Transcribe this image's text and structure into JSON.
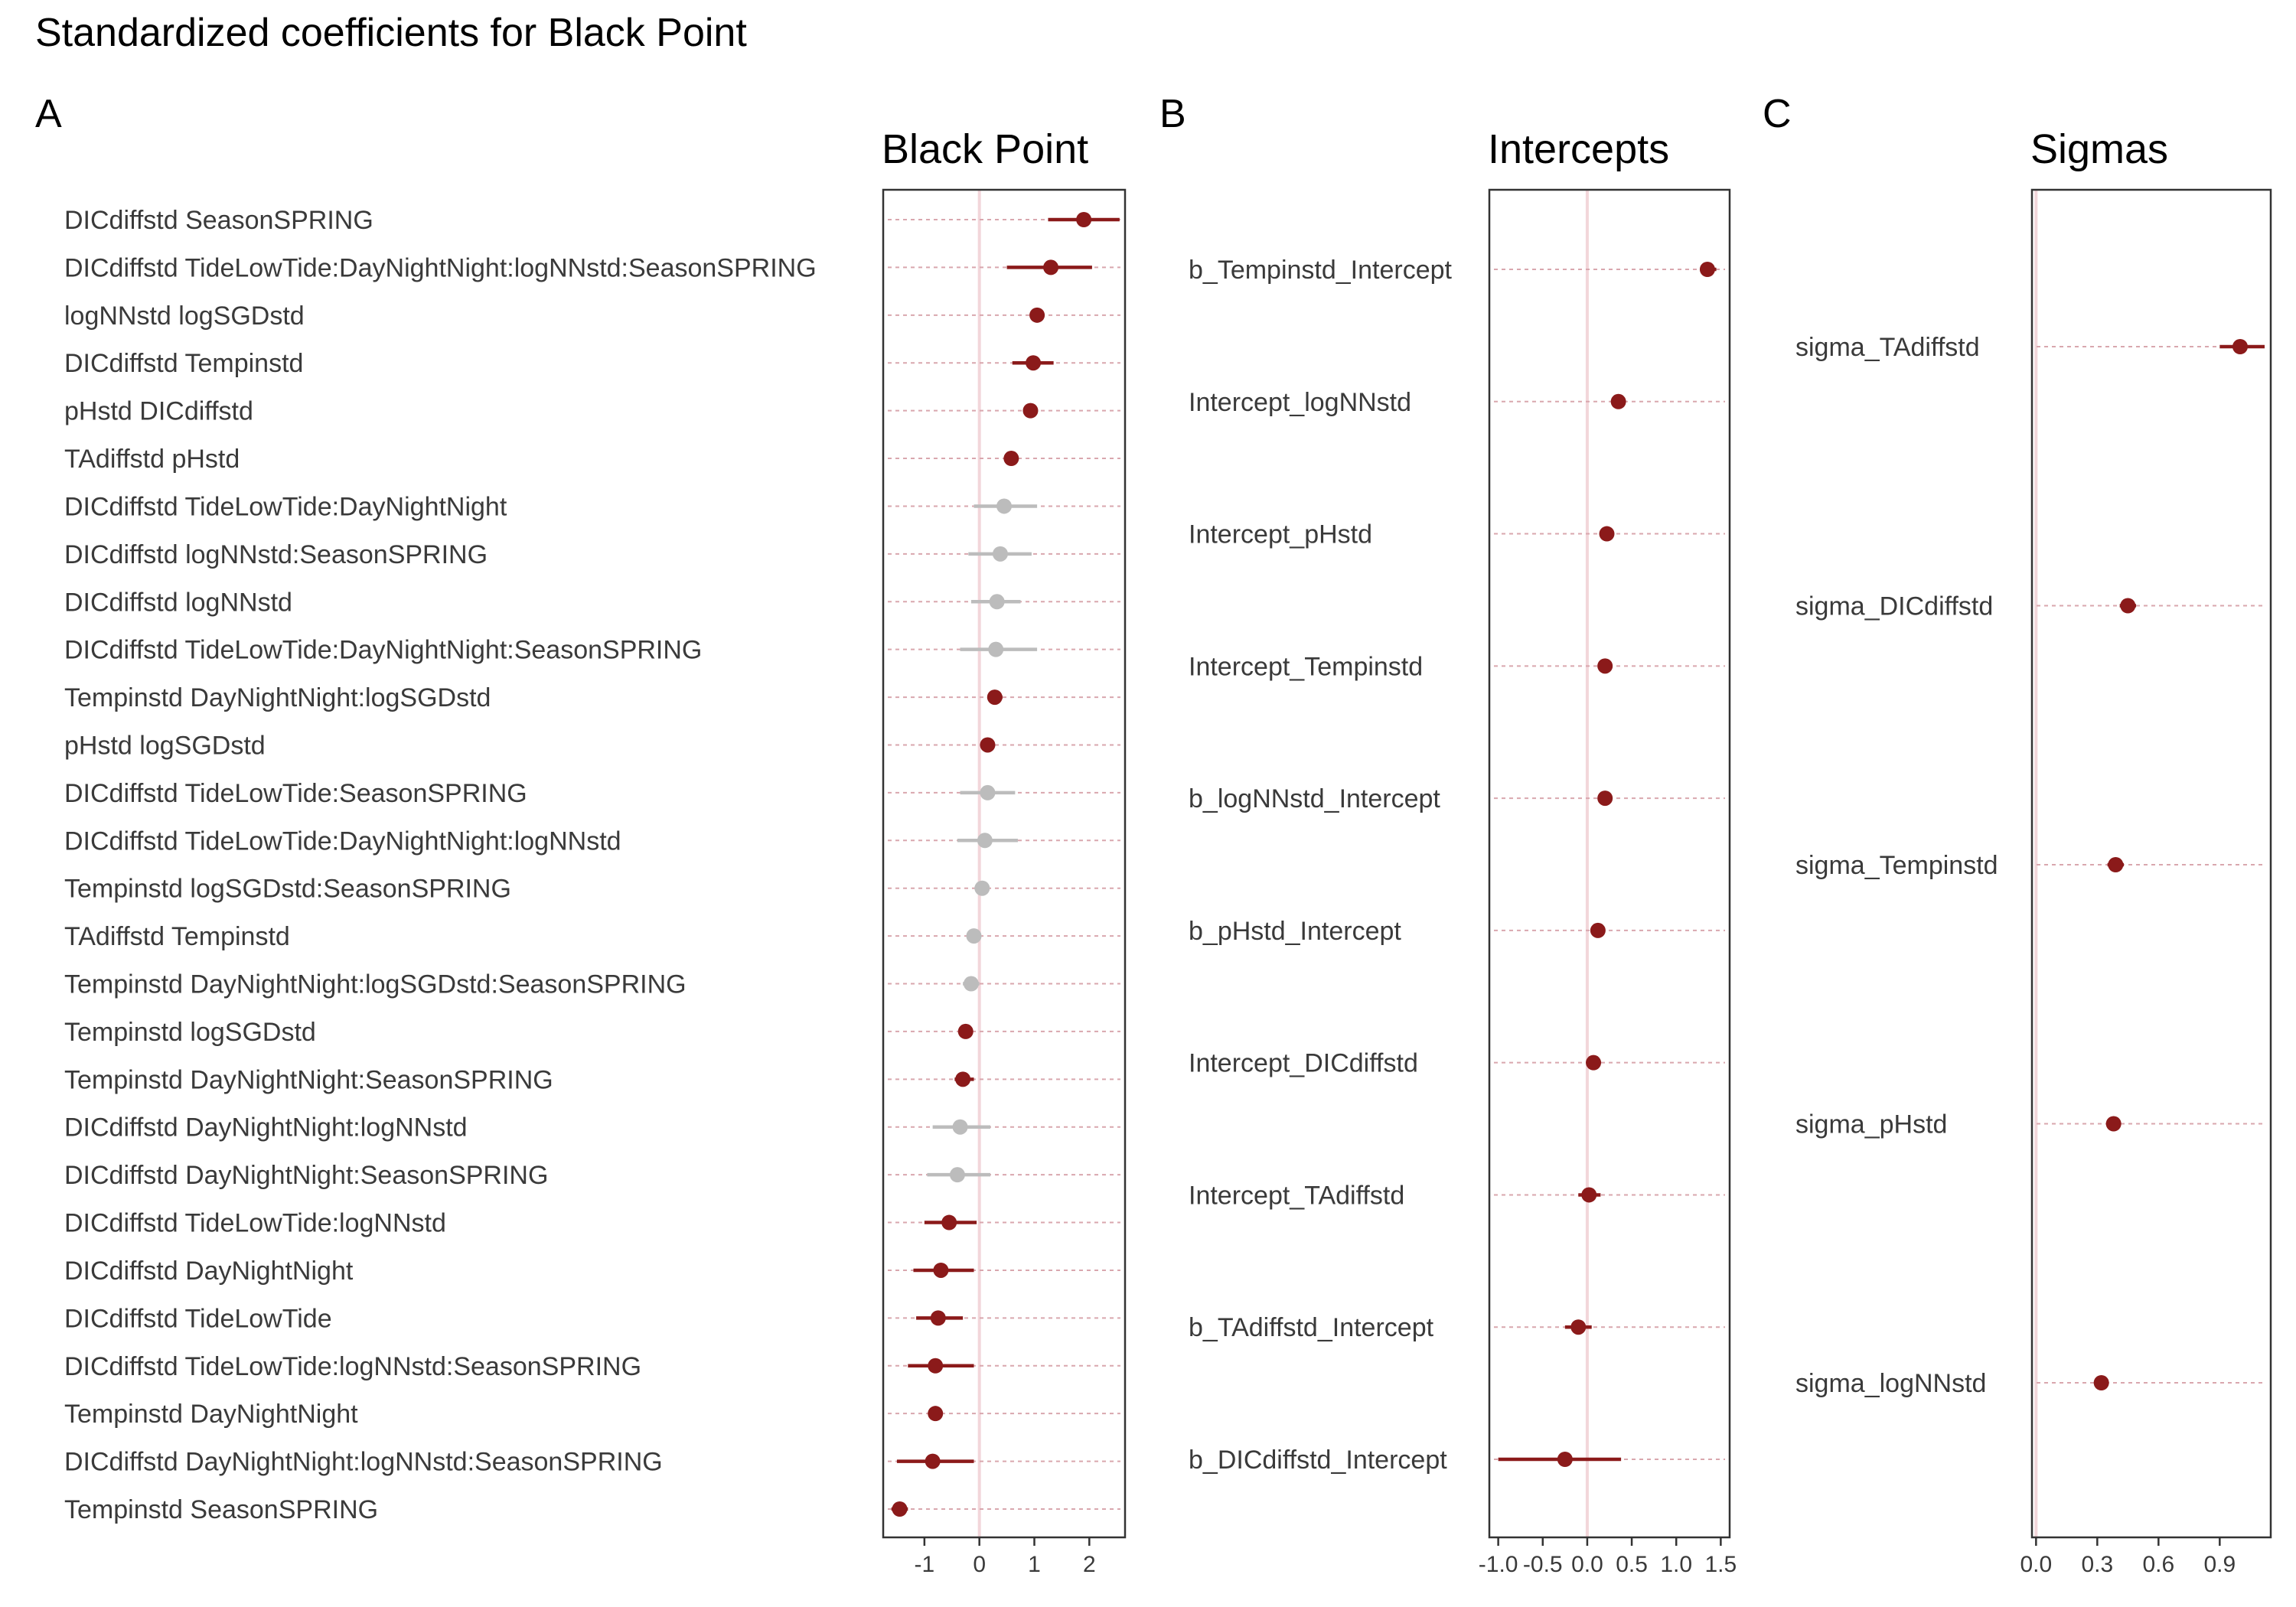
{
  "figure": {
    "title": "Standardized coefficients for Black Point"
  },
  "colors": {
    "significant": "#8b1a1a",
    "nonsignificant": "#bcbcbc",
    "row_guide": "#d9a7ae",
    "zero_line": "#f2d6da",
    "axis": "#333333"
  },
  "panels": [
    {
      "tag": "A",
      "title": "Black Point"
    },
    {
      "tag": "B",
      "title": "Intercepts"
    },
    {
      "tag": "C",
      "title": "Sigmas"
    }
  ],
  "chart_data": [
    {
      "type": "forest",
      "title": "Black Point",
      "xlim": [
        -1.75,
        2.65
      ],
      "xticks": [
        -1,
        0,
        1,
        2
      ],
      "xtick_labels": [
        "-1",
        "0",
        "1",
        "2"
      ],
      "grid": false,
      "reference_line": 0,
      "rows": [
        {
          "label": "DICdiffstd SeasonSPRING",
          "estimate": 1.9,
          "lower": 1.25,
          "upper": 2.55,
          "significant": true
        },
        {
          "label": "DICdiffstd TideLowTide:DayNightNight:logNNstd:SeasonSPRING",
          "estimate": 1.3,
          "lower": 0.5,
          "upper": 2.05,
          "significant": true
        },
        {
          "label": "logNNstd logSGDstd",
          "estimate": 1.05,
          "lower": 1.0,
          "upper": 1.1,
          "significant": true
        },
        {
          "label": "DICdiffstd Tempinstd",
          "estimate": 0.98,
          "lower": 0.6,
          "upper": 1.35,
          "significant": true
        },
        {
          "label": "pHstd DICdiffstd",
          "estimate": 0.93,
          "lower": 0.88,
          "upper": 0.98,
          "significant": true
        },
        {
          "label": "TAdiffstd pHstd",
          "estimate": 0.58,
          "lower": 0.53,
          "upper": 0.63,
          "significant": true
        },
        {
          "label": "DICdiffstd TideLowTide:DayNightNight",
          "estimate": 0.45,
          "lower": -0.1,
          "upper": 1.05,
          "significant": false
        },
        {
          "label": "DICdiffstd logNNstd:SeasonSPRING",
          "estimate": 0.38,
          "lower": -0.2,
          "upper": 0.95,
          "significant": false
        },
        {
          "label": "DICdiffstd logNNstd",
          "estimate": 0.32,
          "lower": -0.15,
          "upper": 0.75,
          "significant": false
        },
        {
          "label": "DICdiffstd TideLowTide:DayNightNight:SeasonSPRING",
          "estimate": 0.3,
          "lower": -0.35,
          "upper": 1.05,
          "significant": false
        },
        {
          "label": "Tempinstd DayNightNight:logSGDstd",
          "estimate": 0.28,
          "lower": 0.15,
          "upper": 0.42,
          "significant": true
        },
        {
          "label": "pHstd logSGDstd",
          "estimate": 0.15,
          "lower": 0.1,
          "upper": 0.2,
          "significant": true
        },
        {
          "label": "DICdiffstd TideLowTide:SeasonSPRING",
          "estimate": 0.15,
          "lower": -0.35,
          "upper": 0.65,
          "significant": false
        },
        {
          "label": "DICdiffstd TideLowTide:DayNightNight:logNNstd",
          "estimate": 0.1,
          "lower": -0.4,
          "upper": 0.7,
          "significant": false
        },
        {
          "label": "Tempinstd logSGDstd:SeasonSPRING",
          "estimate": 0.05,
          "lower": 0.0,
          "upper": 0.1,
          "significant": false
        },
        {
          "label": "TAdiffstd Tempinstd",
          "estimate": -0.1,
          "lower": -0.15,
          "upper": -0.05,
          "significant": false
        },
        {
          "label": "Tempinstd DayNightNight:logSGDstd:SeasonSPRING",
          "estimate": -0.15,
          "lower": -0.3,
          "upper": 0.0,
          "significant": false
        },
        {
          "label": "Tempinstd logSGDstd",
          "estimate": -0.25,
          "lower": -0.3,
          "upper": -0.2,
          "significant": true
        },
        {
          "label": "Tempinstd DayNightNight:SeasonSPRING",
          "estimate": -0.3,
          "lower": -0.45,
          "upper": -0.1,
          "significant": true
        },
        {
          "label": "DICdiffstd DayNightNight:logNNstd",
          "estimate": -0.35,
          "lower": -0.85,
          "upper": 0.2,
          "significant": false
        },
        {
          "label": "DICdiffstd DayNightNight:SeasonSPRING",
          "estimate": -0.4,
          "lower": -0.95,
          "upper": 0.2,
          "significant": false
        },
        {
          "label": "DICdiffstd TideLowTide:logNNstd",
          "estimate": -0.55,
          "lower": -1.0,
          "upper": -0.05,
          "significant": true
        },
        {
          "label": "DICdiffstd DayNightNight",
          "estimate": -0.7,
          "lower": -1.2,
          "upper": -0.1,
          "significant": true
        },
        {
          "label": "DICdiffstd TideLowTide",
          "estimate": -0.75,
          "lower": -1.15,
          "upper": -0.3,
          "significant": true
        },
        {
          "label": "DICdiffstd TideLowTide:logNNstd:SeasonSPRING",
          "estimate": -0.8,
          "lower": -1.3,
          "upper": -0.1,
          "significant": true
        },
        {
          "label": "Tempinstd DayNightNight",
          "estimate": -0.8,
          "lower": -0.9,
          "upper": -0.7,
          "significant": true
        },
        {
          "label": "DICdiffstd DayNightNight:logNNstd:SeasonSPRING",
          "estimate": -0.85,
          "lower": -1.5,
          "upper": -0.1,
          "significant": true
        },
        {
          "label": "Tempinstd SeasonSPRING",
          "estimate": -1.45,
          "lower": -1.6,
          "upper": -1.3,
          "significant": true
        }
      ]
    },
    {
      "type": "forest",
      "title": "Intercepts",
      "xlim": [
        -1.1,
        1.6
      ],
      "xticks": [
        -1.0,
        -0.5,
        0.0,
        0.5,
        1.0,
        1.5
      ],
      "xtick_labels": [
        "-1.0",
        "-0.5",
        "0.0",
        "0.5",
        "1.0",
        "1.5"
      ],
      "grid": false,
      "reference_line": 0,
      "rows": [
        {
          "label": "b_Tempinstd_Intercept",
          "estimate": 1.35,
          "lower": 1.28,
          "upper": 1.45,
          "significant": true
        },
        {
          "label": "Intercept_logNNstd",
          "estimate": 0.35,
          "lower": 0.3,
          "upper": 0.4,
          "significant": true
        },
        {
          "label": "Intercept_pHstd",
          "estimate": 0.22,
          "lower": 0.17,
          "upper": 0.27,
          "significant": true
        },
        {
          "label": "Intercept_Tempinstd",
          "estimate": 0.2,
          "lower": 0.15,
          "upper": 0.25,
          "significant": true
        },
        {
          "label": "b_logNNstd_Intercept",
          "estimate": 0.2,
          "lower": 0.15,
          "upper": 0.25,
          "significant": true
        },
        {
          "label": "b_pHstd_Intercept",
          "estimate": 0.12,
          "lower": 0.07,
          "upper": 0.17,
          "significant": true
        },
        {
          "label": "Intercept_DICdiffstd",
          "estimate": 0.07,
          "lower": 0.02,
          "upper": 0.12,
          "significant": true
        },
        {
          "label": "Intercept_TAdiffstd",
          "estimate": 0.02,
          "lower": -0.1,
          "upper": 0.15,
          "significant": true
        },
        {
          "label": "b_TAdiffstd_Intercept",
          "estimate": -0.1,
          "lower": -0.25,
          "upper": 0.05,
          "significant": true
        },
        {
          "label": "b_DICdiffstd_Intercept",
          "estimate": -0.25,
          "lower": -1.0,
          "upper": 0.38,
          "significant": true
        }
      ]
    },
    {
      "type": "forest",
      "title": "Sigmas",
      "xlim": [
        -0.02,
        1.15
      ],
      "xticks": [
        0.0,
        0.3,
        0.6,
        0.9
      ],
      "xtick_labels": [
        "0.0",
        "0.3",
        "0.6",
        "0.9"
      ],
      "grid": false,
      "reference_line": 0,
      "rows": [
        {
          "label": "sigma_TAdiffstd",
          "estimate": 1.0,
          "lower": 0.9,
          "upper": 1.12,
          "significant": true
        },
        {
          "label": "sigma_DICdiffstd",
          "estimate": 0.45,
          "lower": 0.41,
          "upper": 0.49,
          "significant": true
        },
        {
          "label": "sigma_Tempinstd",
          "estimate": 0.39,
          "lower": 0.35,
          "upper": 0.43,
          "significant": true
        },
        {
          "label": "sigma_pHstd",
          "estimate": 0.38,
          "lower": 0.35,
          "upper": 0.41,
          "significant": true
        },
        {
          "label": "sigma_logNNstd",
          "estimate": 0.32,
          "lower": 0.29,
          "upper": 0.35,
          "significant": true
        }
      ]
    }
  ]
}
